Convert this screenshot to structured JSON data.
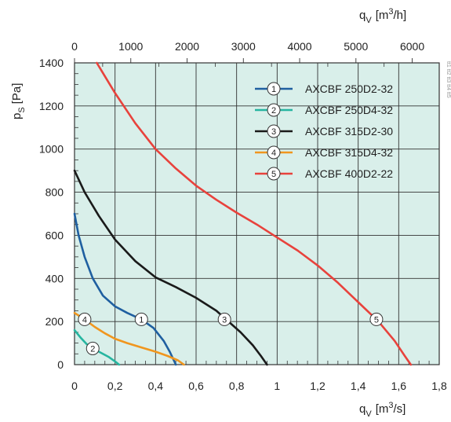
{
  "chart_data": {
    "type": "line",
    "grid": true,
    "background_color": "#d9efea",
    "x_axis": {
      "label": "q",
      "label_sub": "V",
      "unit_prefix": "[m",
      "unit_sup": "3",
      "unit_suffix": "/s]",
      "range": [
        0,
        1.8
      ],
      "ticks": [
        "0",
        "0,2",
        "0,4",
        "0,6",
        "0,8",
        "1",
        "1,2",
        "1,4",
        "1,6",
        "1,8"
      ]
    },
    "x2_axis": {
      "label": "q",
      "label_sub": "V",
      "unit_prefix": "[m",
      "unit_sup": "3",
      "unit_suffix": "/h]",
      "range": [
        0,
        6480
      ],
      "ticks": [
        "0",
        "1000",
        "2000",
        "3000",
        "4000",
        "5000",
        "6000"
      ],
      "tick_values": [
        0,
        1000,
        2000,
        3000,
        4000,
        5000,
        6000
      ]
    },
    "y_axis": {
      "label": "p",
      "label_sub": "S",
      "unit": "[Pa]",
      "range": [
        0,
        1400
      ],
      "ticks": [
        "0",
        "200",
        "400",
        "600",
        "800",
        "1000",
        "1200",
        "1400"
      ]
    },
    "legend_position": "top-right",
    "series": [
      {
        "marker": "1",
        "name": "AXCBF 250D2-32",
        "color": "#1f5fa0",
        "label_point": [
          0.33,
          210
        ],
        "points": [
          [
            0,
            700
          ],
          [
            0.02,
            600
          ],
          [
            0.05,
            500
          ],
          [
            0.09,
            400
          ],
          [
            0.14,
            320
          ],
          [
            0.2,
            270
          ],
          [
            0.26,
            240
          ],
          [
            0.33,
            210
          ],
          [
            0.39,
            170
          ],
          [
            0.44,
            110
          ],
          [
            0.47,
            60
          ],
          [
            0.49,
            20
          ],
          [
            0.5,
            0
          ]
        ]
      },
      {
        "marker": "2",
        "name": "AXCBF 250D4-32",
        "color": "#26b5a0",
        "label_point": [
          0.09,
          75
        ],
        "points": [
          [
            0,
            160
          ],
          [
            0.03,
            125
          ],
          [
            0.06,
            95
          ],
          [
            0.09,
            75
          ],
          [
            0.13,
            55
          ],
          [
            0.17,
            35
          ],
          [
            0.2,
            15
          ],
          [
            0.22,
            0
          ]
        ]
      },
      {
        "marker": "3",
        "name": "AXCBF 315D2-30",
        "color": "#1a1a1a",
        "label_point": [
          0.74,
          210
        ],
        "points": [
          [
            0,
            900
          ],
          [
            0.05,
            800
          ],
          [
            0.12,
            690
          ],
          [
            0.2,
            580
          ],
          [
            0.3,
            480
          ],
          [
            0.4,
            405
          ],
          [
            0.5,
            360
          ],
          [
            0.6,
            310
          ],
          [
            0.7,
            250
          ],
          [
            0.76,
            200
          ],
          [
            0.82,
            150
          ],
          [
            0.88,
            90
          ],
          [
            0.92,
            40
          ],
          [
            0.95,
            0
          ]
        ]
      },
      {
        "marker": "4",
        "name": "AXCBF 315D4-32",
        "color": "#f0961e",
        "label_point": [
          0.05,
          210
        ],
        "points": [
          [
            0,
            240
          ],
          [
            0.05,
            210
          ],
          [
            0.1,
            175
          ],
          [
            0.15,
            145
          ],
          [
            0.2,
            120
          ],
          [
            0.26,
            100
          ],
          [
            0.33,
            80
          ],
          [
            0.4,
            60
          ],
          [
            0.46,
            40
          ],
          [
            0.51,
            20
          ],
          [
            0.54,
            0
          ]
        ]
      },
      {
        "marker": "5",
        "name": "AXCBF 400D2-22",
        "color": "#e8423c",
        "label_point": [
          1.49,
          210
        ],
        "points": [
          [
            0.11,
            1400
          ],
          [
            0.2,
            1260
          ],
          [
            0.3,
            1120
          ],
          [
            0.4,
            1000
          ],
          [
            0.5,
            910
          ],
          [
            0.6,
            830
          ],
          [
            0.7,
            765
          ],
          [
            0.8,
            705
          ],
          [
            0.9,
            650
          ],
          [
            1.0,
            590
          ],
          [
            1.1,
            530
          ],
          [
            1.2,
            460
          ],
          [
            1.3,
            380
          ],
          [
            1.4,
            290
          ],
          [
            1.5,
            200
          ],
          [
            1.58,
            110
          ],
          [
            1.63,
            40
          ],
          [
            1.66,
            0
          ]
        ]
      }
    ]
  },
  "side_note": "tt1 tt2 tt3 tt4 tt5"
}
